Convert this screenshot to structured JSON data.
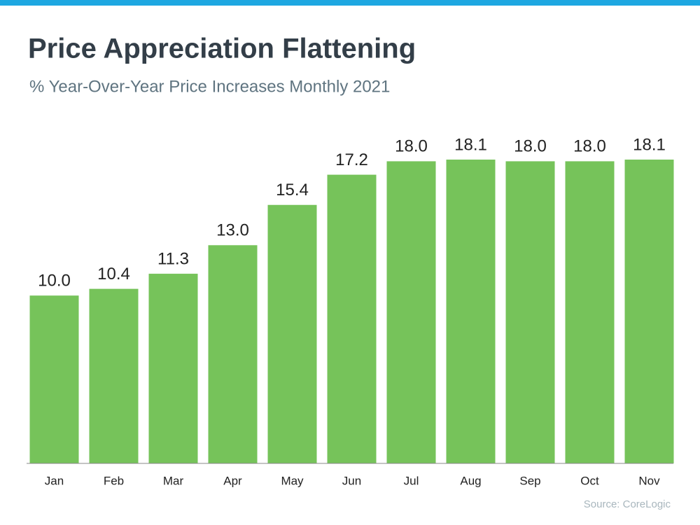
{
  "chart_data": {
    "type": "bar",
    "title": "Price Appreciation Flattening",
    "subtitle": "% Year-Over-Year Price Increases Monthly 2021",
    "source": "Source: CoreLogic",
    "categories": [
      "Jan",
      "Feb",
      "Mar",
      "Apr",
      "May",
      "Jun",
      "Jul",
      "Aug",
      "Sep",
      "Oct",
      "Nov"
    ],
    "values": [
      10.0,
      10.4,
      11.3,
      13.0,
      15.4,
      17.2,
      18.0,
      18.1,
      18.0,
      18.0,
      18.1
    ],
    "value_labels": [
      "10.0",
      "10.4",
      "11.3",
      "13.0",
      "15.4",
      "17.2",
      "18.0",
      "18.1",
      "18.0",
      "18.0",
      "18.1"
    ],
    "color": "#76c35a"
  }
}
